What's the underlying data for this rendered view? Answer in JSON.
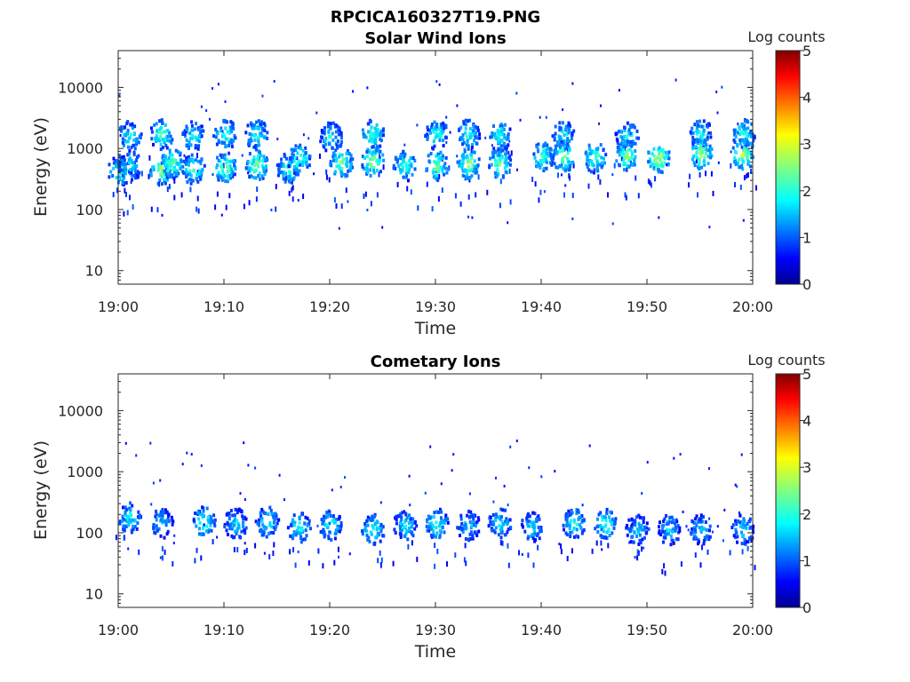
{
  "figure_title": "RPCICA160327T19.PNG",
  "colors": {
    "axis": "#262626",
    "background": "#ffffff",
    "colormap": "jet"
  },
  "chart_data": [
    {
      "type": "heatmap",
      "title": "Solar Wind Ions",
      "xlabel": "Time",
      "ylabel": "Energy (eV)",
      "x_ticks": [
        "19:00",
        "19:10",
        "19:20",
        "19:30",
        "19:40",
        "19:50",
        "20:00"
      ],
      "xlim": [
        "19:00",
        "20:00"
      ],
      "y_scale": "log",
      "y_ticks": [
        10,
        100,
        1000,
        10000
      ],
      "y_tick_labels": [
        "10",
        "100",
        "1000",
        "10000"
      ],
      "ylim": [
        6,
        40000
      ],
      "colorbar": {
        "label": "Log counts",
        "range": [
          0,
          5
        ],
        "ticks": [
          "0",
          "1",
          "2",
          "3",
          "4",
          "5"
        ]
      },
      "blobs": [
        {
          "t": "19:00",
          "e": 450,
          "c": 2.2
        },
        {
          "t": "19:01",
          "e": 1700,
          "c": 2.0
        },
        {
          "t": "19:01",
          "e": 550,
          "c": 2.0
        },
        {
          "t": "19:04",
          "e": 1800,
          "c": 2.4
        },
        {
          "t": "19:04",
          "e": 480,
          "c": 2.8
        },
        {
          "t": "19:05",
          "e": 600,
          "c": 2.5
        },
        {
          "t": "19:07",
          "e": 1700,
          "c": 2.0
        },
        {
          "t": "19:07",
          "e": 480,
          "c": 2.3
        },
        {
          "t": "19:10",
          "e": 1800,
          "c": 2.2
        },
        {
          "t": "19:10",
          "e": 520,
          "c": 2.6
        },
        {
          "t": "19:13",
          "e": 1800,
          "c": 2.1
        },
        {
          "t": "19:13",
          "e": 560,
          "c": 2.6
        },
        {
          "t": "19:16",
          "e": 500,
          "c": 2.2
        },
        {
          "t": "19:17",
          "e": 700,
          "c": 2.4
        },
        {
          "t": "19:20",
          "e": 1600,
          "c": 2.0
        },
        {
          "t": "19:21",
          "e": 620,
          "c": 2.6
        },
        {
          "t": "19:24",
          "e": 1800,
          "c": 2.3
        },
        {
          "t": "19:24",
          "e": 650,
          "c": 2.7
        },
        {
          "t": "19:27",
          "e": 550,
          "c": 2.3
        },
        {
          "t": "19:30",
          "e": 1800,
          "c": 2.1
        },
        {
          "t": "19:30",
          "e": 550,
          "c": 2.6
        },
        {
          "t": "19:33",
          "e": 1800,
          "c": 2.2
        },
        {
          "t": "19:33",
          "e": 600,
          "c": 2.7
        },
        {
          "t": "19:36",
          "e": 1700,
          "c": 2.1
        },
        {
          "t": "19:36",
          "e": 600,
          "c": 2.5
        },
        {
          "t": "19:40",
          "e": 780,
          "c": 2.2
        },
        {
          "t": "19:42",
          "e": 1700,
          "c": 2.0
        },
        {
          "t": "19:42",
          "e": 780,
          "c": 2.6
        },
        {
          "t": "19:45",
          "e": 750,
          "c": 2.4
        },
        {
          "t": "19:48",
          "e": 1700,
          "c": 2.0
        },
        {
          "t": "19:48",
          "e": 800,
          "c": 2.7
        },
        {
          "t": "19:51",
          "e": 750,
          "c": 2.9
        },
        {
          "t": "19:55",
          "e": 1800,
          "c": 2.1
        },
        {
          "t": "19:55",
          "e": 850,
          "c": 2.8
        },
        {
          "t": "19:59",
          "e": 1800,
          "c": 2.2
        },
        {
          "t": "19:59",
          "e": 850,
          "c": 2.9
        }
      ],
      "scatter_range": [
        50,
        14000
      ]
    },
    {
      "type": "heatmap",
      "title": "Cometary Ions",
      "xlabel": "Time",
      "ylabel": "Energy (eV)",
      "x_ticks": [
        "19:00",
        "19:10",
        "19:20",
        "19:30",
        "19:40",
        "19:50",
        "20:00"
      ],
      "xlim": [
        "19:00",
        "20:00"
      ],
      "y_scale": "log",
      "y_ticks": [
        10,
        100,
        1000,
        10000
      ],
      "y_tick_labels": [
        "10",
        "100",
        "1000",
        "10000"
      ],
      "ylim": [
        6,
        40000
      ],
      "colorbar": {
        "label": "Log counts",
        "range": [
          0,
          5
        ],
        "ticks": [
          "0",
          "1",
          "2",
          "3",
          "4",
          "5"
        ]
      },
      "blobs": [
        {
          "t": "19:01",
          "e": 190,
          "c": 2.0
        },
        {
          "t": "19:04",
          "e": 150,
          "c": 1.8
        },
        {
          "t": "19:08",
          "e": 160,
          "c": 2.2
        },
        {
          "t": "19:11",
          "e": 150,
          "c": 1.9
        },
        {
          "t": "19:14",
          "e": 160,
          "c": 2.0
        },
        {
          "t": "19:17",
          "e": 130,
          "c": 2.1
        },
        {
          "t": "19:20",
          "e": 140,
          "c": 2.0
        },
        {
          "t": "19:24",
          "e": 120,
          "c": 2.1
        },
        {
          "t": "19:27",
          "e": 140,
          "c": 1.9
        },
        {
          "t": "19:30",
          "e": 150,
          "c": 2.2
        },
        {
          "t": "19:33",
          "e": 140,
          "c": 1.8
        },
        {
          "t": "19:36",
          "e": 150,
          "c": 2.0
        },
        {
          "t": "19:39",
          "e": 130,
          "c": 1.8
        },
        {
          "t": "19:43",
          "e": 150,
          "c": 2.1
        },
        {
          "t": "19:46",
          "e": 150,
          "c": 2.2
        },
        {
          "t": "19:49",
          "e": 120,
          "c": 1.8
        },
        {
          "t": "19:52",
          "e": 120,
          "c": 1.7
        },
        {
          "t": "19:55",
          "e": 120,
          "c": 1.9
        },
        {
          "t": "19:59",
          "e": 120,
          "c": 1.9
        }
      ],
      "scatter_range": [
        30,
        3500
      ]
    }
  ]
}
